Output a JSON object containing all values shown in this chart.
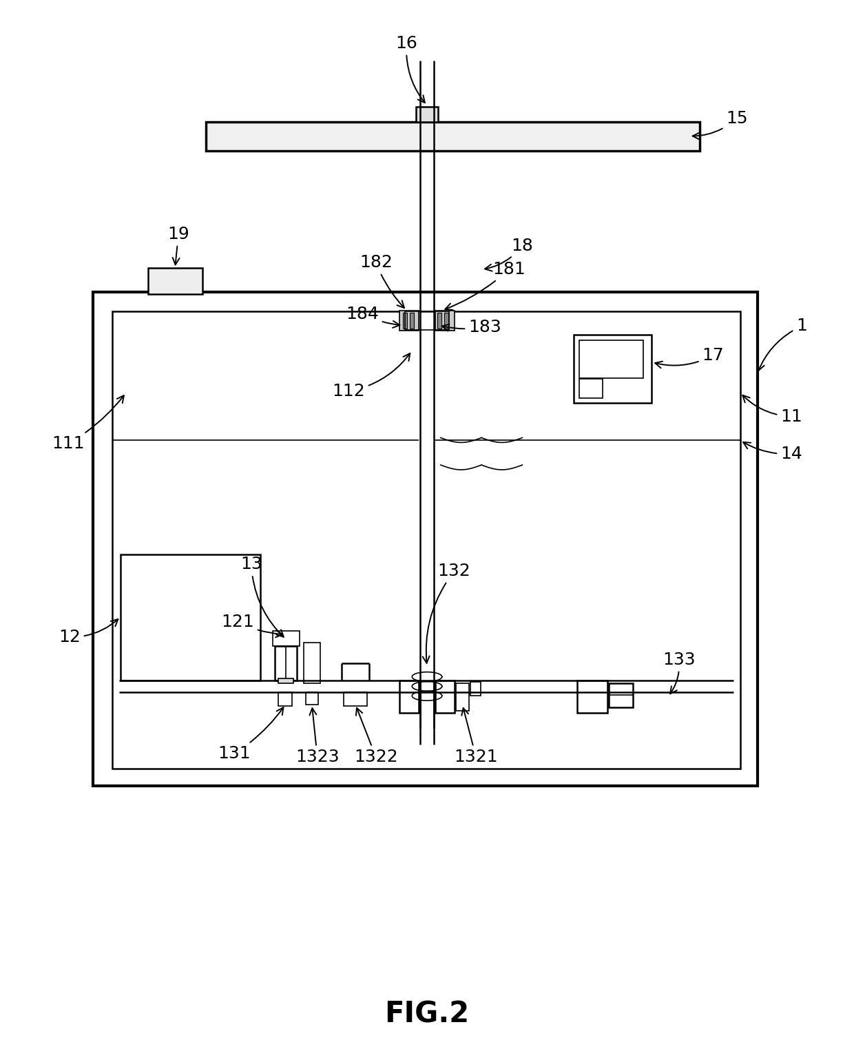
{
  "bg_color": "#ffffff",
  "line_color": "#000000",
  "title": "FIG.2",
  "title_fontsize": 30,
  "label_fontsize": 18,
  "fig_width": 12.4,
  "fig_height": 15.39
}
